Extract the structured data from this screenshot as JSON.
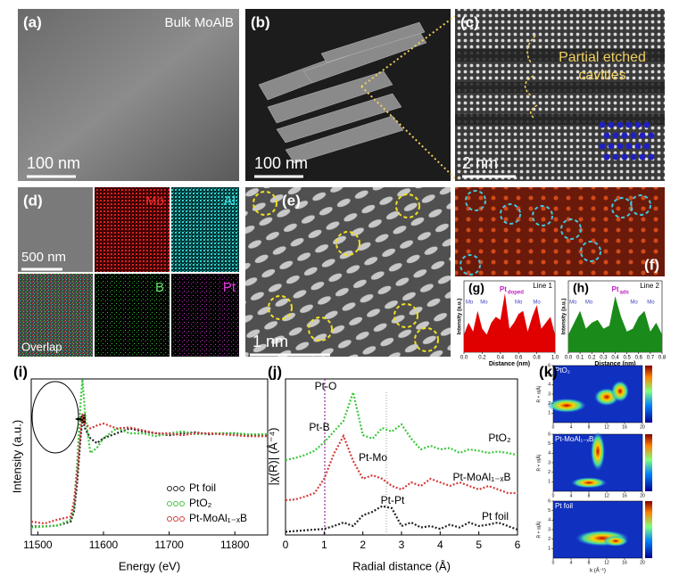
{
  "panels": {
    "a": {
      "label": "(a)",
      "caption": "Bulk MoAlB",
      "scale": "100 nm"
    },
    "b": {
      "label": "(b)",
      "scale": "100 nm"
    },
    "c": {
      "label": "(c)",
      "annotation": "Partial etched cavities",
      "scale": "2 nm"
    },
    "d": {
      "label": "(d)",
      "scale": "500 nm",
      "maps": [
        "Mo",
        "Al",
        "B",
        "Pt"
      ],
      "overlap": "Overlap"
    },
    "e": {
      "label": "(e)",
      "scale": "1 nm"
    },
    "f": {
      "label": "(f)"
    }
  },
  "g": {
    "label": "(g)",
    "line": "Line 1",
    "peak": "Pt",
    "peak_sub": "doped",
    "mo": [
      "Mo",
      "Mo",
      "Mo",
      "Mo"
    ],
    "xlabel": "Distance (nm)",
    "ylabel": "Intensity (a.u.)",
    "xlim": [
      0,
      1.0
    ],
    "xticks": [
      {
        "value": 0,
        "label": "0.0"
      },
      0.2,
      0.4,
      0.6,
      0.8,
      {
        "value": 1,
        "label": "1.0"
      }
    ],
    "x": [
      0,
      0.05,
      0.1,
      0.15,
      0.2,
      0.25,
      0.3,
      0.35,
      0.4,
      0.45,
      0.5,
      0.55,
      0.6,
      0.65,
      0.7,
      0.75,
      0.8,
      0.85,
      0.9,
      0.95,
      1.0
    ],
    "values": [
      0.3,
      0.5,
      0.35,
      0.7,
      0.4,
      0.3,
      0.5,
      0.6,
      0.55,
      1.0,
      0.4,
      0.5,
      0.65,
      0.7,
      0.35,
      0.6,
      0.8,
      0.4,
      0.5,
      0.6,
      0.3
    ],
    "color": "#e00000"
  },
  "h": {
    "label": "(h)",
    "line": "Line 2",
    "peak": "Pt",
    "peak_sub": "ads",
    "mo": [
      "Mo",
      "Mo",
      "Mo",
      "Mo"
    ],
    "xlabel": "Distance (nm)",
    "ylabel": "Intensity (a.u.)",
    "xlim": [
      0,
      0.8
    ],
    "xticks": [
      {
        "value": 0,
        "label": "0.0"
      },
      0.1,
      0.2,
      0.3,
      0.4,
      0.5,
      0.6,
      0.7,
      0.8
    ],
    "x": [
      0,
      0.05,
      0.1,
      0.15,
      0.2,
      0.25,
      0.3,
      0.35,
      0.4,
      0.45,
      0.5,
      0.55,
      0.6,
      0.65,
      0.7,
      0.75,
      0.8
    ],
    "values": [
      0.3,
      0.5,
      0.7,
      0.4,
      0.5,
      0.55,
      0.4,
      0.45,
      0.95,
      0.6,
      0.35,
      0.4,
      0.6,
      0.7,
      0.35,
      0.5,
      0.3
    ],
    "color": "#1a8a1a"
  },
  "i": {
    "label": "(i)",
    "xlabel": "Energy (eV)",
    "ylabel": "Intensity (a.u.)",
    "xlim": [
      11490,
      11850
    ],
    "xticks": [
      11500,
      11600,
      11700,
      11800
    ],
    "x": [
      11490,
      11510,
      11530,
      11550,
      11555,
      11560,
      11565,
      11568,
      11572,
      11580,
      11590,
      11600,
      11620,
      11640,
      11660,
      11680,
      11700,
      11720,
      11740,
      11760,
      11780,
      11800,
      11820,
      11850
    ],
    "series": [
      {
        "name": "Pt foil",
        "color": "#222222",
        "values": [
          0.05,
          0.05,
          0.06,
          0.1,
          0.2,
          0.5,
          0.95,
          1.15,
          1.05,
          0.95,
          0.9,
          0.95,
          1.0,
          1.05,
          1.02,
          1.0,
          0.98,
          1.0,
          1.01,
          0.99,
          1.0,
          1.0,
          0.98,
          0.98
        ]
      },
      {
        "name": "PtO₂",
        "color": "#3cc83c",
        "values": [
          0.04,
          0.05,
          0.06,
          0.12,
          0.25,
          0.7,
          1.3,
          1.55,
          1.2,
          0.8,
          0.85,
          0.95,
          1.05,
          1.0,
          1.0,
          0.97,
          1.0,
          1.02,
          0.99,
          1.0,
          1.0,
          1.0,
          0.99,
          0.99
        ]
      },
      {
        "name": "Pt-MoAl₁₋ₓB",
        "color": "#d43c3c",
        "values": [
          0.1,
          0.08,
          0.12,
          0.15,
          0.3,
          0.6,
          1.0,
          1.2,
          1.1,
          1.05,
          1.08,
          1.1,
          1.05,
          1.06,
          1.03,
          1.0,
          1.0,
          0.98,
          1.0,
          1.0,
          0.99,
          0.98,
          0.97,
          0.97
        ]
      }
    ]
  },
  "j": {
    "label": "(j)",
    "xlabel": "Radial distance (Å)",
    "ylabel": "|χ(R)| (Å⁻⁴)",
    "xlim": [
      0,
      6
    ],
    "xticks": [
      0,
      1,
      2,
      3,
      4,
      5,
      6
    ],
    "annotations": [
      "Pt-O",
      "Pt-B",
      "Pt-Mo",
      "Pt-Pt"
    ],
    "x": [
      0,
      0.25,
      0.5,
      0.75,
      1.0,
      1.25,
      1.5,
      1.75,
      2.0,
      2.25,
      2.5,
      2.75,
      3.0,
      3.25,
      3.5,
      3.75,
      4.0,
      4.25,
      4.5,
      4.75,
      5.0,
      5.25,
      5.5,
      5.75,
      6.0
    ],
    "series": [
      {
        "name": "PtO₂",
        "color": "#3cc83c",
        "values": [
          0.05,
          0.08,
          0.12,
          0.18,
          0.3,
          0.45,
          0.6,
          1.0,
          0.4,
          0.35,
          0.5,
          0.45,
          0.55,
          0.35,
          0.2,
          0.25,
          0.2,
          0.22,
          0.15,
          0.2,
          0.18,
          0.15,
          0.17,
          0.15,
          0.12
        ]
      },
      {
        "name": "Pt-MoAl₁₋ₓB",
        "color": "#d43c3c",
        "values": [
          0.05,
          0.06,
          0.1,
          0.15,
          0.35,
          0.7,
          0.95,
          0.6,
          0.35,
          0.4,
          0.35,
          0.25,
          0.2,
          0.3,
          0.25,
          0.35,
          0.3,
          0.25,
          0.3,
          0.25,
          0.2,
          0.25,
          0.2,
          0.15,
          0.15
        ]
      },
      {
        "name": "Pt foil",
        "color": "#222222",
        "values": [
          0.02,
          0.03,
          0.04,
          0.05,
          0.06,
          0.1,
          0.15,
          0.1,
          0.25,
          0.3,
          0.38,
          0.35,
          0.1,
          0.15,
          0.08,
          0.1,
          0.06,
          0.12,
          0.08,
          0.15,
          0.1,
          0.12,
          0.15,
          0.1,
          0.05
        ]
      }
    ]
  },
  "k": {
    "label": "(k)",
    "maps": [
      "PtO₂",
      "Pt-MoAl₁₋ₓB",
      "Pt foil"
    ],
    "xlabel": "k (Å⁻¹)",
    "ylabel": "R + α(Å)",
    "xlim": [
      0,
      20
    ],
    "ylim": [
      0,
      6
    ],
    "xticks": [
      0,
      4,
      8,
      12,
      16,
      20
    ],
    "yticks": [
      1,
      2,
      3,
      4,
      5,
      6
    ]
  }
}
